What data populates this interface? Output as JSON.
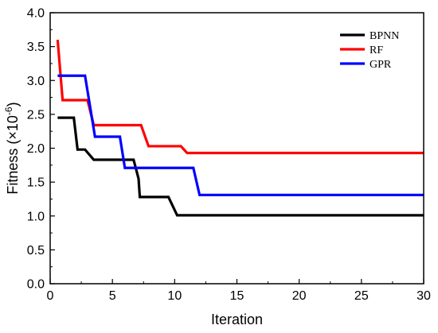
{
  "chart_data": {
    "type": "line",
    "xlabel": "Iteration",
    "ylabel": "Fitness (×10",
    "ylabel_sup": "-6",
    "ylabel_close": ")",
    "xlim": [
      0,
      30
    ],
    "ylim": [
      0.0,
      4.0
    ],
    "xticks": [
      "0",
      "5",
      "10",
      "15",
      "20",
      "25",
      "30"
    ],
    "yticks": [
      "0.0",
      "0.5",
      "1.0",
      "1.5",
      "2.0",
      "2.5",
      "3.0",
      "3.5",
      "4.0"
    ],
    "legend_position": "top-right",
    "grid": false,
    "series": [
      {
        "name": "BPNN",
        "color": "#000000",
        "x": [
          0.6,
          1.9,
          2.2,
          2.8,
          3.5,
          6.7,
          7.1,
          7.2,
          9.5,
          10.2,
          30
        ],
        "y": [
          2.45,
          2.45,
          1.98,
          1.98,
          1.83,
          1.83,
          1.55,
          1.28,
          1.28,
          1.01,
          1.01
        ]
      },
      {
        "name": "RF",
        "color": "#ff0000",
        "x": [
          0.6,
          1.0,
          3.0,
          3.5,
          7.3,
          7.9,
          10.5,
          11.0,
          30
        ],
        "y": [
          3.6,
          2.71,
          2.71,
          2.34,
          2.34,
          2.03,
          2.03,
          1.93,
          1.93
        ]
      },
      {
        "name": "GPR",
        "color": "#0000ff",
        "x": [
          0.6,
          2.8,
          3.6,
          5.6,
          6.0,
          11.5,
          12.0,
          30
        ],
        "y": [
          3.07,
          3.07,
          2.17,
          2.17,
          1.71,
          1.71,
          1.31,
          1.31
        ]
      }
    ]
  }
}
